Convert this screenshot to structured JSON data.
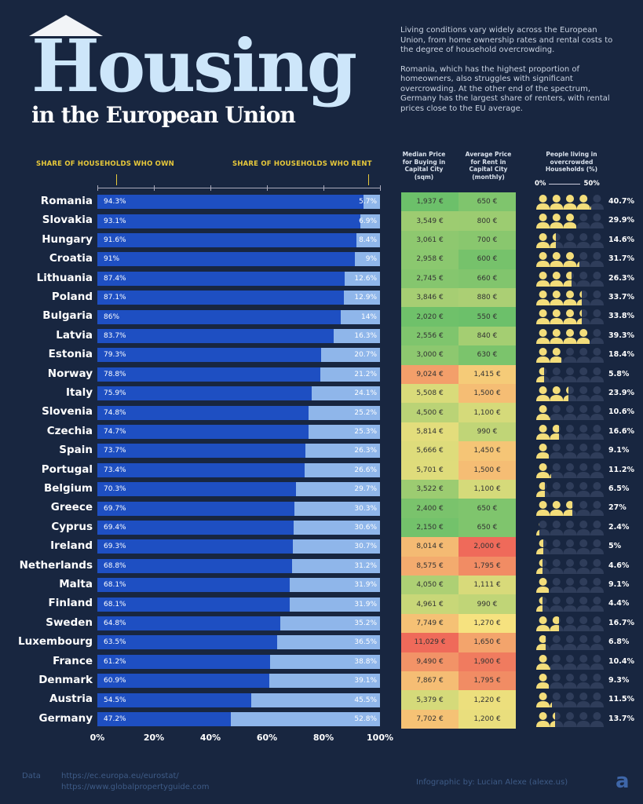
{
  "header": {
    "title": "Housing",
    "subtitle": "in the European Union",
    "description": [
      "Living conditions vary widely across the European Union, from home ownership rates and rental costs to the degree of household overcrowding.",
      "Romania, which has the highest proportion of homeowners, also struggles with significant overcrowding. At the other end of the spectrum, Germany has the largest share of renters, with rental prices close to the EU average."
    ]
  },
  "chart_data": {
    "type": "bar",
    "own_label": "SHARE OF HOUSEHOLDS WHO OWN",
    "rent_label": "SHARE OF HOUSEHOLDS WHO RENT",
    "buy_header": "Median Price for Buying in Capital City (sqm)",
    "rent_header": "Average Price for Rent in Capital City (monthly)",
    "crowd_header": "People living in overcrowded Households (%)",
    "crowd_scale": [
      "0%",
      "50%"
    ],
    "x_ticks": [
      "0%",
      "20%",
      "40%",
      "60%",
      "80%",
      "100%"
    ],
    "xlim": [
      0,
      100
    ],
    "colors": {
      "own": "#1e4fc2",
      "rent": "#8fb6ea",
      "low": "#6cc06a",
      "mid": "#f7e27f",
      "high": "#ef6a5a",
      "person": "#f3dd7a",
      "person_empty": "#2f3d5a"
    },
    "categories": [
      "Romania",
      "Slovakia",
      "Hungary",
      "Croatia",
      "Lithuania",
      "Poland",
      "Bulgaria",
      "Latvia",
      "Estonia",
      "Norway",
      "Italy",
      "Slovenia",
      "Czechia",
      "Spain",
      "Portugal",
      "Belgium",
      "Greece",
      "Cyprus",
      "Ireland",
      "Netherlands",
      "Malta",
      "Finland",
      "Sweden",
      "Luxembourg",
      "France",
      "Denmark",
      "Austria",
      "Germany"
    ],
    "own": [
      94.3,
      93.1,
      91.6,
      91,
      87.4,
      87.1,
      86,
      83.7,
      79.3,
      78.8,
      75.9,
      74.8,
      74.7,
      73.7,
      73.4,
      70.3,
      69.7,
      69.4,
      69.3,
      68.8,
      68.1,
      68.1,
      64.8,
      63.5,
      61.2,
      60.9,
      54.5,
      47.2
    ],
    "rent": [
      5.7,
      6.9,
      8.4,
      9,
      12.6,
      12.9,
      14,
      16.3,
      20.7,
      21.2,
      24.1,
      25.2,
      25.3,
      26.3,
      26.6,
      29.7,
      30.3,
      30.6,
      30.7,
      31.2,
      31.9,
      31.9,
      35.2,
      36.5,
      38.8,
      39.1,
      45.5,
      52.8
    ],
    "buy_price": [
      "1,937 €",
      "3,549 €",
      "3,061 €",
      "2,958 €",
      "2,745 €",
      "3,846 €",
      "2,020 €",
      "2,556 €",
      "3,000 €",
      "9,024 €",
      "5,508 €",
      "4,500 €",
      "5,814 €",
      "5,666 €",
      "5,701 €",
      "3,522 €",
      "2,400 €",
      "2,150 €",
      "8,014 €",
      "8,575 €",
      "4,050 €",
      "4,961 €",
      "7,749 €",
      "11,029 €",
      "9,490 €",
      "7,867 €",
      "5,379 €",
      "7,702 €"
    ],
    "rent_price": [
      "650 €",
      "800 €",
      "700 €",
      "600 €",
      "660 €",
      "880 €",
      "550 €",
      "840 €",
      "630 €",
      "1,415 €",
      "1,500 €",
      "1,100 €",
      "990 €",
      "1,450 €",
      "1,500 €",
      "1,100 €",
      "650 €",
      "650 €",
      "2,000 €",
      "1,795 €",
      "1,111 €",
      "990 €",
      "1,270 €",
      "1,650 €",
      "1,900 €",
      "1,795 €",
      "1,220 €",
      "1,200 €"
    ],
    "overcrowded": [
      40.7,
      29.9,
      14.6,
      31.7,
      26.3,
      33.7,
      33.8,
      39.3,
      18.4,
      5.8,
      23.9,
      10.6,
      16.6,
      9.1,
      11.2,
      6.5,
      27,
      2.4,
      5,
      4.6,
      9.1,
      4.4,
      16.7,
      6.8,
      10.4,
      9.3,
      11.5,
      13.7
    ]
  },
  "footer": {
    "data_label": "Data",
    "sources": [
      "https://ec.europa.eu/eurostat/",
      "https://www.globalpropertyguide.com"
    ],
    "credit": "Infographic by: Lucian Alexe (alexe.us)",
    "logo_letter": "a"
  }
}
